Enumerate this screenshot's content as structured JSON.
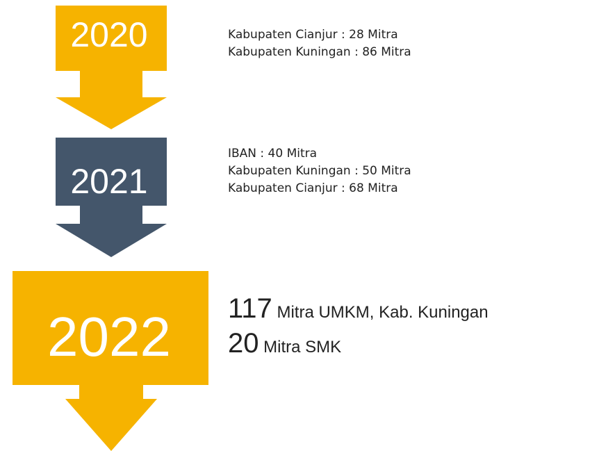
{
  "steps": [
    {
      "year": "2020",
      "lines": [
        "Kabupaten Cianjur : 28 Mitra",
        "Kabupaten Kuningan : 86 Mitra"
      ]
    },
    {
      "year": "2021",
      "lines": [
        "IBAN : 40 Mitra",
        "Kabupaten Kuningan : 50 Mitra",
        "Kabupaten Cianjur : 68 Mitra"
      ]
    },
    {
      "year": "2022",
      "lines": [
        {
          "number": "117",
          "text": "Mitra UMKM, Kab. Kuningan"
        },
        {
          "number": "20",
          "text": "Mitra SMK"
        }
      ]
    }
  ]
}
